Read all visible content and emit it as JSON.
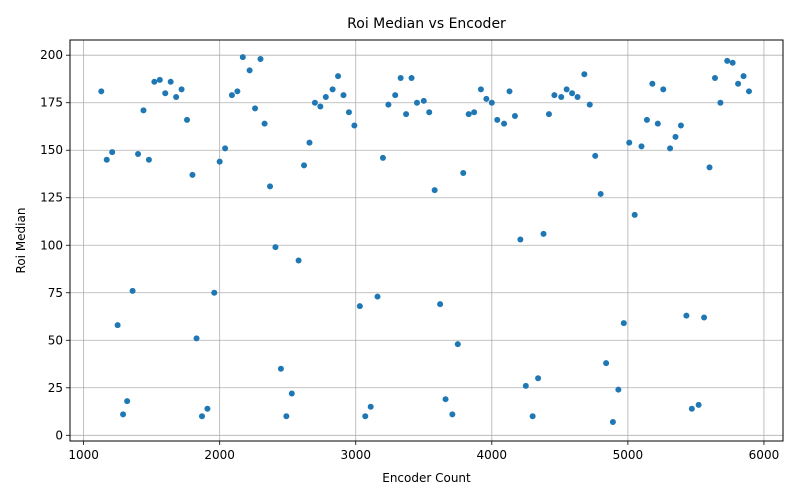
{
  "chart_data": {
    "type": "scatter",
    "title": "Roi Median vs Encoder",
    "xlabel": "Encoder Count",
    "ylabel": "Roi Median",
    "xlim": [
      900,
      6140
    ],
    "ylim": [
      -3,
      208
    ],
    "xticks": [
      1000,
      2000,
      3000,
      4000,
      5000,
      6000
    ],
    "yticks": [
      0,
      25,
      50,
      75,
      100,
      125,
      150,
      175,
      200
    ],
    "grid": true,
    "marker_color": "#1f77b4",
    "points": [
      {
        "x": 1130,
        "y": 181
      },
      {
        "x": 1170,
        "y": 145
      },
      {
        "x": 1210,
        "y": 149
      },
      {
        "x": 1250,
        "y": 58
      },
      {
        "x": 1290,
        "y": 11
      },
      {
        "x": 1320,
        "y": 18
      },
      {
        "x": 1360,
        "y": 76
      },
      {
        "x": 1400,
        "y": 148
      },
      {
        "x": 1440,
        "y": 171
      },
      {
        "x": 1480,
        "y": 145
      },
      {
        "x": 1520,
        "y": 186
      },
      {
        "x": 1560,
        "y": 187
      },
      {
        "x": 1600,
        "y": 180
      },
      {
        "x": 1640,
        "y": 186
      },
      {
        "x": 1680,
        "y": 178
      },
      {
        "x": 1720,
        "y": 182
      },
      {
        "x": 1760,
        "y": 166
      },
      {
        "x": 1800,
        "y": 137
      },
      {
        "x": 1830,
        "y": 51
      },
      {
        "x": 1870,
        "y": 10
      },
      {
        "x": 1910,
        "y": 14
      },
      {
        "x": 1960,
        "y": 75
      },
      {
        "x": 2000,
        "y": 144
      },
      {
        "x": 2040,
        "y": 151
      },
      {
        "x": 2090,
        "y": 179
      },
      {
        "x": 2130,
        "y": 181
      },
      {
        "x": 2170,
        "y": 199
      },
      {
        "x": 2220,
        "y": 192
      },
      {
        "x": 2260,
        "y": 172
      },
      {
        "x": 2300,
        "y": 198
      },
      {
        "x": 2330,
        "y": 164
      },
      {
        "x": 2370,
        "y": 131
      },
      {
        "x": 2410,
        "y": 99
      },
      {
        "x": 2450,
        "y": 35
      },
      {
        "x": 2490,
        "y": 10
      },
      {
        "x": 2530,
        "y": 22
      },
      {
        "x": 2580,
        "y": 92
      },
      {
        "x": 2620,
        "y": 142
      },
      {
        "x": 2660,
        "y": 154
      },
      {
        "x": 2700,
        "y": 175
      },
      {
        "x": 2740,
        "y": 173
      },
      {
        "x": 2780,
        "y": 178
      },
      {
        "x": 2830,
        "y": 182
      },
      {
        "x": 2870,
        "y": 189
      },
      {
        "x": 2910,
        "y": 179
      },
      {
        "x": 2950,
        "y": 170
      },
      {
        "x": 2990,
        "y": 163
      },
      {
        "x": 3030,
        "y": 68
      },
      {
        "x": 3070,
        "y": 10
      },
      {
        "x": 3110,
        "y": 15
      },
      {
        "x": 3160,
        "y": 73
      },
      {
        "x": 3200,
        "y": 146
      },
      {
        "x": 3240,
        "y": 174
      },
      {
        "x": 3290,
        "y": 179
      },
      {
        "x": 3330,
        "y": 188
      },
      {
        "x": 3370,
        "y": 169
      },
      {
        "x": 3410,
        "y": 188
      },
      {
        "x": 3450,
        "y": 175
      },
      {
        "x": 3500,
        "y": 176
      },
      {
        "x": 3540,
        "y": 170
      },
      {
        "x": 3580,
        "y": 129
      },
      {
        "x": 3620,
        "y": 69
      },
      {
        "x": 3660,
        "y": 19
      },
      {
        "x": 3710,
        "y": 11
      },
      {
        "x": 3750,
        "y": 48
      },
      {
        "x": 3790,
        "y": 138
      },
      {
        "x": 3830,
        "y": 169
      },
      {
        "x": 3870,
        "y": 170
      },
      {
        "x": 3920,
        "y": 182
      },
      {
        "x": 3960,
        "y": 177
      },
      {
        "x": 4000,
        "y": 175
      },
      {
        "x": 4040,
        "y": 166
      },
      {
        "x": 4090,
        "y": 164
      },
      {
        "x": 4130,
        "y": 181
      },
      {
        "x": 4170,
        "y": 168
      },
      {
        "x": 4210,
        "y": 103
      },
      {
        "x": 4250,
        "y": 26
      },
      {
        "x": 4300,
        "y": 10
      },
      {
        "x": 4340,
        "y": 30
      },
      {
        "x": 4380,
        "y": 106
      },
      {
        "x": 4420,
        "y": 169
      },
      {
        "x": 4460,
        "y": 179
      },
      {
        "x": 4510,
        "y": 178
      },
      {
        "x": 4550,
        "y": 182
      },
      {
        "x": 4590,
        "y": 180
      },
      {
        "x": 4630,
        "y": 178
      },
      {
        "x": 4680,
        "y": 190
      },
      {
        "x": 4720,
        "y": 174
      },
      {
        "x": 4760,
        "y": 147
      },
      {
        "x": 4800,
        "y": 127
      },
      {
        "x": 4840,
        "y": 38
      },
      {
        "x": 4890,
        "y": 7
      },
      {
        "x": 4930,
        "y": 24
      },
      {
        "x": 4970,
        "y": 59
      },
      {
        "x": 5010,
        "y": 154
      },
      {
        "x": 5050,
        "y": 116
      },
      {
        "x": 5100,
        "y": 152
      },
      {
        "x": 5140,
        "y": 166
      },
      {
        "x": 5180,
        "y": 185
      },
      {
        "x": 5220,
        "y": 164
      },
      {
        "x": 5260,
        "y": 182
      },
      {
        "x": 5310,
        "y": 151
      },
      {
        "x": 5350,
        "y": 157
      },
      {
        "x": 5390,
        "y": 163
      },
      {
        "x": 5430,
        "y": 63
      },
      {
        "x": 5470,
        "y": 14
      },
      {
        "x": 5520,
        "y": 16
      },
      {
        "x": 5560,
        "y": 62
      },
      {
        "x": 5600,
        "y": 141
      },
      {
        "x": 5640,
        "y": 188
      },
      {
        "x": 5680,
        "y": 175
      },
      {
        "x": 5730,
        "y": 197
      },
      {
        "x": 5770,
        "y": 196
      },
      {
        "x": 5810,
        "y": 185
      },
      {
        "x": 5850,
        "y": 189
      },
      {
        "x": 5890,
        "y": 181
      }
    ]
  }
}
